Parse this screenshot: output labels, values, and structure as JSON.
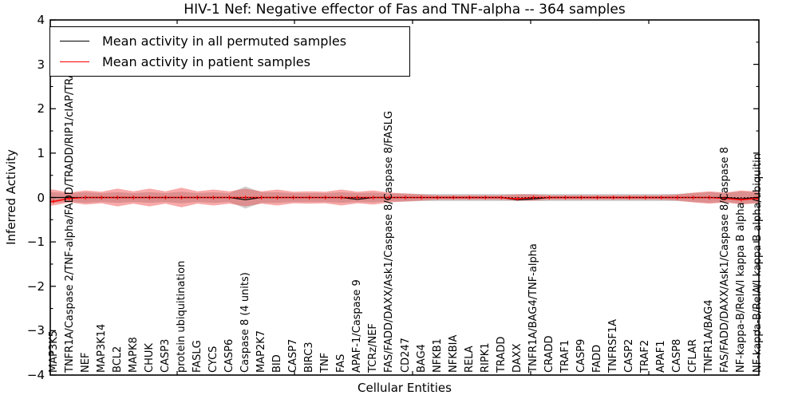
{
  "chart_data": {
    "type": "line",
    "title": "HIV-1 Nef: Negative effector of Fas and TNF-alpha -- 364 samples",
    "xlabel": "Cellular Entities",
    "ylabel": "Inferred Activity",
    "ylim": [
      -4,
      4
    ],
    "yticks": [
      4,
      3,
      2,
      1,
      0,
      -1,
      -2,
      -3,
      -4
    ],
    "y_minor_tick_step": 0.5,
    "grid": false,
    "legend_position": "upper left",
    "sample_count_in_title": 364,
    "categories": [
      "MAP3K5",
      "TNFR1A/Caspase 2/TNF-alpha/FADD/TRADD/RIP1/cIAP/TRAF2",
      "NEF",
      "MAP3K14",
      "BCL2",
      "MAPK8",
      "CHUK",
      "CASP3",
      "protein ubiquitination",
      "FASLG",
      "CYCS",
      "CASP6",
      "Caspase 8 (4 units)",
      "MAP2K7",
      "BID",
      "CASP7",
      "BIRC3",
      "TNF",
      "FAS",
      "APAF-1/Caspase 9",
      "TCRz/NEF",
      "FAS/FADD/DAXX/Ask1/Caspase 8/Caspase 8/FASLG",
      "CD247",
      "BAG4",
      "NFKB1",
      "NFKBIA",
      "RELA",
      "RIPK1",
      "TRADD",
      "DAXX",
      "TNFR1A/BAG4/TNF-alpha",
      "CRADD",
      "TRAF1",
      "CASP9",
      "FADD",
      "TNFRSF1A",
      "CASP2",
      "TRAF2",
      "APAF1",
      "CASP8",
      "CFLAR",
      "TNFR1A/BAG4",
      "FAS/FADD/DAXX/Ask1/Caspase 8/Caspase 8",
      "NF-kappa-B/RelA/I kappa B alpha",
      "NF-kappa-B/RelA/I kappa B alpha/ubiquitin"
    ],
    "series": [
      {
        "name": "Mean activity in all permuted samples",
        "color": "#000000",
        "style": "solid",
        "values": [
          0,
          0,
          0,
          0,
          0,
          0,
          0,
          0,
          0,
          0,
          0,
          0,
          -0.05,
          0,
          0,
          0,
          0,
          0,
          0,
          -0.04,
          0,
          0,
          0,
          0,
          0,
          0,
          0,
          0,
          0,
          -0.05,
          -0.03,
          0,
          0,
          0,
          0,
          0,
          0,
          0,
          0,
          0,
          0,
          0,
          0,
          -0.03,
          0
        ]
      },
      {
        "name": "Mean activity in patient samples",
        "color": "#ff0000",
        "style": "solid-with-plus-markers",
        "values": [
          -0.09,
          -0.02,
          0,
          0,
          0,
          0,
          0,
          0,
          0,
          0,
          0,
          0,
          0,
          0,
          0,
          0,
          0,
          0,
          0,
          0,
          0,
          0,
          0,
          0,
          0,
          0,
          0,
          0,
          0,
          -0.03,
          0,
          0,
          0,
          0,
          0,
          0,
          0,
          0,
          0,
          0,
          0,
          0,
          -0.02,
          -0.05,
          -0.02
        ]
      }
    ],
    "bands": [
      {
        "name": "permuted-samples-range",
        "color": "#999999",
        "opacity": 0.45,
        "center": 0,
        "halfwidths": [
          0.12,
          0.1,
          0.12,
          0.1,
          0.12,
          0.1,
          0.12,
          0.1,
          0.13,
          0.1,
          0.12,
          0.1,
          0.25,
          0.12,
          0.12,
          0.1,
          0.1,
          0.1,
          0.12,
          0.1,
          0.11,
          0.09,
          0.09,
          0.08,
          0.08,
          0.08,
          0.08,
          0.08,
          0.08,
          0.08,
          0.08,
          0.08,
          0.08,
          0.08,
          0.08,
          0.08,
          0.08,
          0.08,
          0.08,
          0.08,
          0.1,
          0.12,
          0.1,
          0.14,
          0.12
        ]
      },
      {
        "name": "patient-samples-range",
        "color": "#ee3333",
        "opacity": 0.42,
        "center": 0,
        "halfwidths": [
          0.18,
          0.11,
          0.16,
          0.13,
          0.2,
          0.14,
          0.2,
          0.14,
          0.22,
          0.14,
          0.18,
          0.14,
          0.2,
          0.14,
          0.18,
          0.13,
          0.14,
          0.13,
          0.18,
          0.13,
          0.16,
          0.11,
          0.09,
          0.07,
          0.05,
          0.05,
          0.05,
          0.05,
          0.05,
          0.07,
          0.07,
          0.05,
          0.05,
          0.05,
          0.05,
          0.05,
          0.05,
          0.05,
          0.05,
          0.07,
          0.11,
          0.14,
          0.11,
          0.16,
          0.13
        ]
      }
    ],
    "zero_line": {
      "style": "dotted",
      "color": "#000000",
      "y": 0
    }
  },
  "axis_color": "#000000"
}
